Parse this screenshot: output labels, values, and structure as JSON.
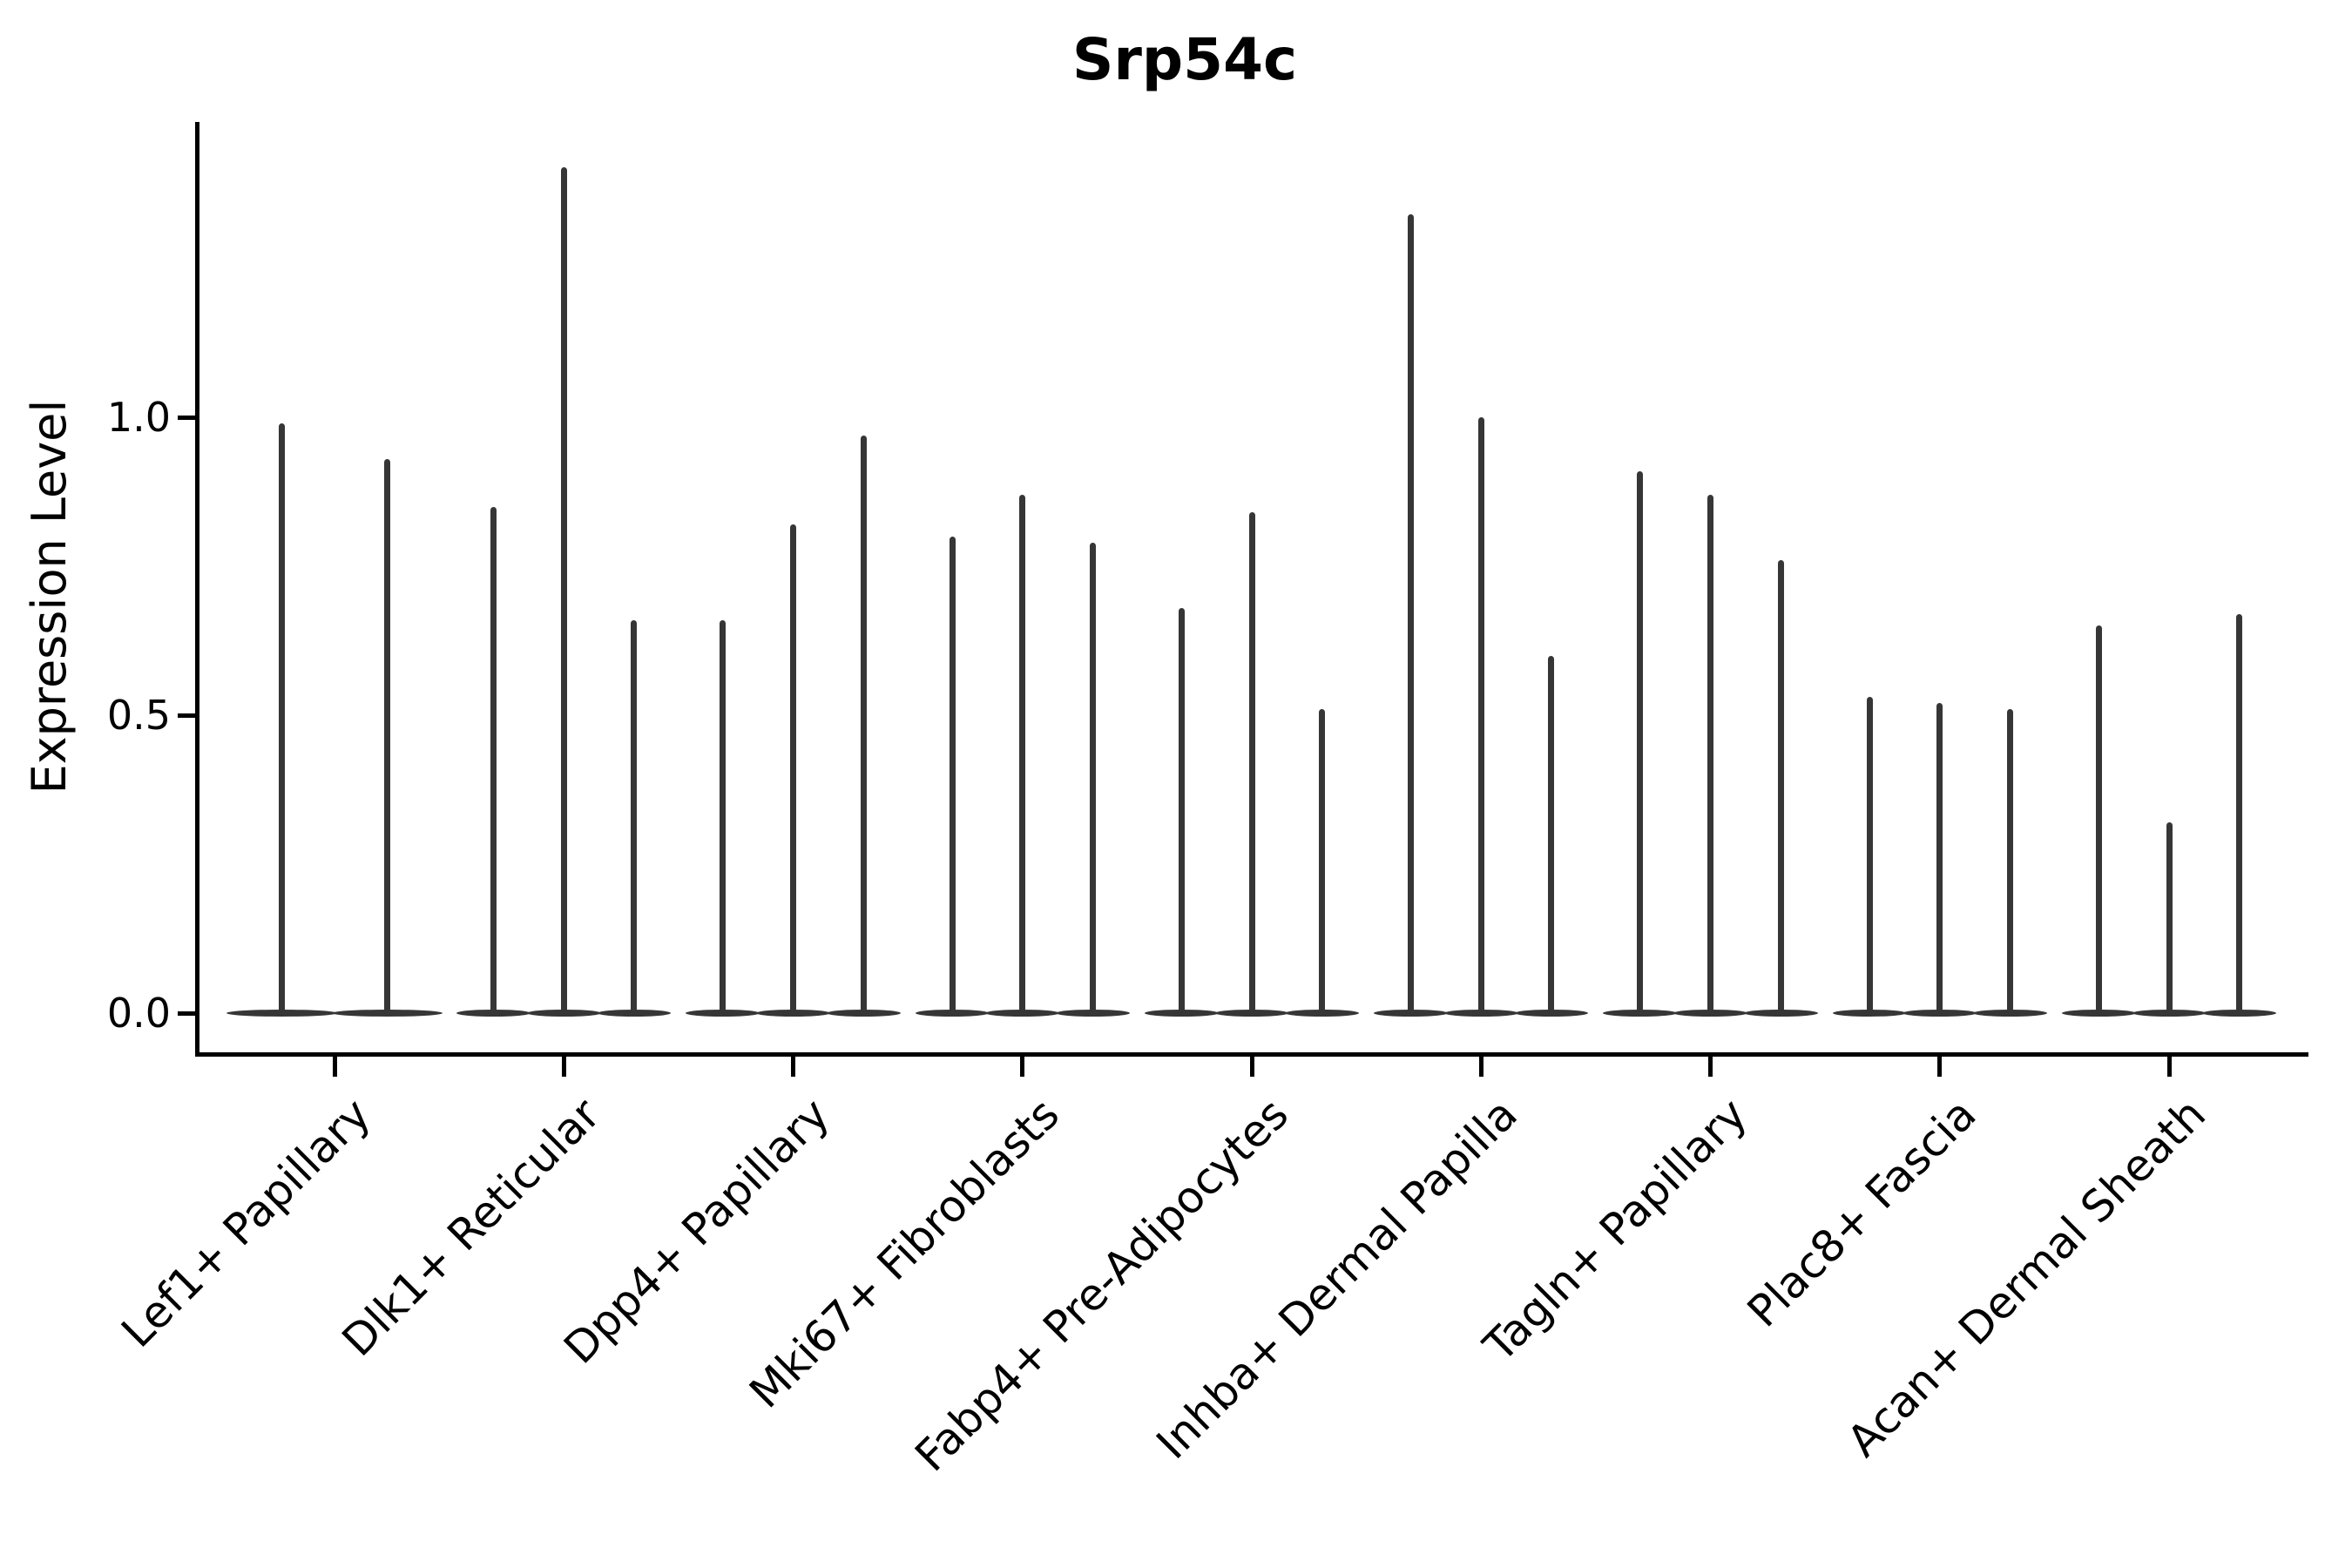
{
  "title": "Srp54c",
  "axes": {
    "ylabel": "Expression Level",
    "xlabel": "",
    "ytick_labels": [
      "0.0",
      "0.5",
      "1.0"
    ]
  },
  "colors": {
    "violin": "#363636",
    "axis": "#000000",
    "background": "#ffffff",
    "text": "#000000"
  },
  "chart_data": {
    "type": "violin",
    "title": "Srp54c",
    "ylabel": "Expression Level",
    "xlabel": "",
    "yticks": [
      0.0,
      0.5,
      1.0
    ],
    "ylim": [
      -0.07,
      1.5
    ],
    "grid": false,
    "legend": false,
    "categories": [
      "Lef1+ Papillary",
      "Dlk1+ Reticular",
      "Dpp4+ Papillary",
      "Mki67+ Fibroblasts",
      "Fabp4+ Pre-Adipocytes",
      "Inhba+ Dermal Papilla",
      "Tagln+ Papillary",
      "Plac8+ Fascia",
      "Acan+ Dermal Sheath"
    ],
    "groups": [
      {
        "category": "Lef1+ Papillary",
        "violin_max_expression": [
          0.99,
          0.93
        ]
      },
      {
        "category": "Dlk1+ Reticular",
        "violin_max_expression": [
          0.85,
          1.42,
          0.66
        ]
      },
      {
        "category": "Dpp4+ Papillary",
        "violin_max_expression": [
          0.66,
          0.82,
          0.97
        ]
      },
      {
        "category": "Mki67+ Fibroblasts",
        "violin_max_expression": [
          0.8,
          0.87,
          0.79
        ]
      },
      {
        "category": "Fabp4+ Pre-Adipocytes",
        "violin_max_expression": [
          0.68,
          0.84,
          0.51
        ]
      },
      {
        "category": "Inhba+ Dermal Papilla",
        "violin_max_expression": [
          1.34,
          1.0,
          0.6
        ]
      },
      {
        "category": "Tagln+ Papillary",
        "violin_max_expression": [
          0.91,
          0.87,
          0.76
        ]
      },
      {
        "category": "Plac8+ Fascia",
        "violin_max_expression": [
          0.53,
          0.52,
          0.51
        ]
      },
      {
        "category": "Acan+ Dermal Sheath",
        "violin_max_expression": [
          0.65,
          0.32,
          0.67
        ]
      }
    ],
    "note": "Violin plot; each violin collapses to a flat band at expression 0 with a thin spike rising to its maximum value."
  }
}
